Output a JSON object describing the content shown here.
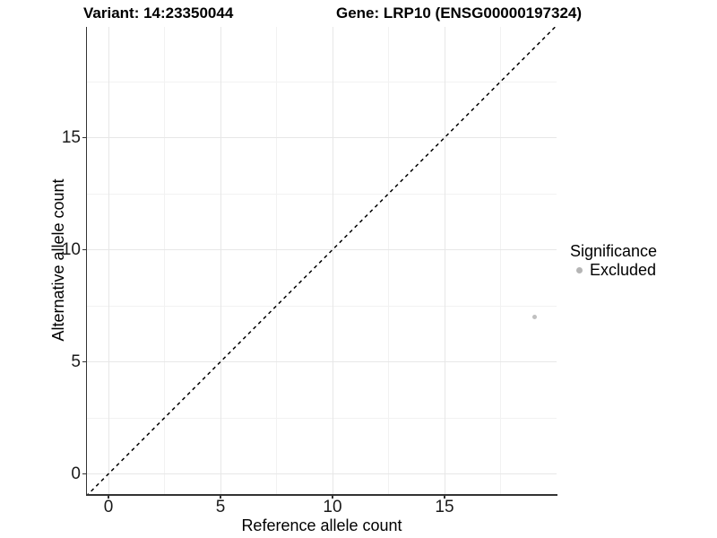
{
  "chart_data": {
    "type": "scatter",
    "title_left": "Variant: 14:23350044",
    "title_right": "Gene: LRP10 (ENSG00000197324)",
    "xlabel": "Reference allele count",
    "ylabel": "Alternative allele count",
    "xlim": [
      -1,
      20
    ],
    "ylim": [
      -1,
      20
    ],
    "x_major_ticks": [
      0,
      5,
      10,
      15
    ],
    "y_major_ticks": [
      0,
      5,
      10,
      15
    ],
    "x_minor_gridlines": [
      2.5,
      7.5,
      12.5,
      17.5
    ],
    "y_minor_gridlines": [
      2.5,
      7.5,
      12.5,
      17.5
    ],
    "grid": "major+minor",
    "reference_line": {
      "type": "identity",
      "style": "dashed",
      "color": "#000000",
      "from": [
        -1,
        -1
      ],
      "to": [
        20,
        20
      ]
    },
    "series": [
      {
        "name": "Excluded",
        "marker": "circle",
        "color": "#c0c0c0",
        "points": [
          [
            19,
            7
          ]
        ]
      }
    ],
    "legend": {
      "title": "Significance",
      "position": "right",
      "items": [
        {
          "label": "Excluded",
          "color": "#b5b5b5",
          "marker": "circle"
        }
      ]
    },
    "colors": {
      "background": "#ffffff",
      "grid_major": "#e7e7e7",
      "grid_minor": "#f2f2f2",
      "axis_line": "#333333",
      "text": "#000000",
      "point": "#c0c0c0"
    }
  }
}
